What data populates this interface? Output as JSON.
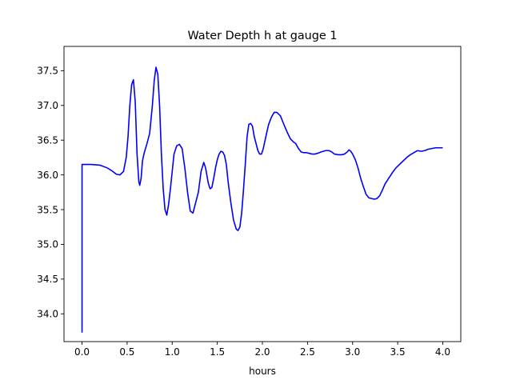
{
  "chart_data": {
    "type": "line",
    "title": "Water Depth h at gauge 1",
    "xlabel": "hours",
    "ylabel": "",
    "xlim": [
      -0.2,
      4.2
    ],
    "ylim": [
      33.6,
      37.85
    ],
    "xticks": [
      0.0,
      0.5,
      1.0,
      1.5,
      2.0,
      2.5,
      3.0,
      3.5,
      4.0
    ],
    "xtick_labels": [
      "0.0",
      "0.5",
      "1.0",
      "1.5",
      "2.0",
      "2.5",
      "3.0",
      "3.5",
      "4.0"
    ],
    "yticks": [
      34.0,
      34.5,
      35.0,
      35.5,
      36.0,
      36.5,
      37.0,
      37.5
    ],
    "ytick_labels": [
      "34.0",
      "34.5",
      "35.0",
      "35.5",
      "36.0",
      "36.5",
      "37.0",
      "37.5"
    ],
    "grid": false,
    "color": "#0000ff",
    "series": [
      {
        "x": [
          0.0,
          0.0,
          0.0,
          0.1,
          0.2,
          0.28,
          0.33,
          0.38,
          0.42,
          0.46,
          0.49,
          0.51,
          0.53,
          0.55,
          0.57,
          0.59,
          0.61,
          0.63,
          0.64,
          0.655,
          0.67,
          0.69,
          0.72,
          0.75,
          0.78,
          0.8,
          0.82,
          0.84,
          0.86,
          0.88,
          0.9,
          0.92,
          0.94,
          0.96,
          0.98,
          1.0,
          1.02,
          1.05,
          1.08,
          1.11,
          1.14,
          1.17,
          1.2,
          1.23,
          1.26,
          1.29,
          1.32,
          1.35,
          1.37,
          1.4,
          1.42,
          1.44,
          1.46,
          1.48,
          1.5,
          1.52,
          1.54,
          1.56,
          1.58,
          1.6,
          1.62,
          1.65,
          1.68,
          1.71,
          1.73,
          1.75,
          1.77,
          1.79,
          1.81,
          1.83,
          1.85,
          1.87,
          1.89,
          1.91,
          1.93,
          1.95,
          1.97,
          1.99,
          2.01,
          2.03,
          2.05,
          2.07,
          2.1,
          2.13,
          2.16,
          2.2,
          2.24,
          2.28,
          2.31,
          2.34,
          2.37,
          2.4,
          2.43,
          2.46,
          2.49,
          2.52,
          2.55,
          2.58,
          2.61,
          2.65,
          2.7,
          2.74,
          2.77,
          2.8,
          2.84,
          2.88,
          2.91,
          2.94,
          2.96,
          2.98,
          3.0,
          3.03,
          3.06,
          3.09,
          3.12,
          3.15,
          3.18,
          3.21,
          3.24,
          3.27,
          3.3,
          3.33,
          3.36,
          3.4,
          3.44,
          3.48,
          3.52,
          3.56,
          3.6,
          3.64,
          3.68,
          3.72,
          3.76,
          3.8,
          3.84,
          3.88,
          3.92,
          3.96,
          4.0
        ],
        "y": [
          33.73,
          36.0,
          36.15,
          36.15,
          36.14,
          36.1,
          36.06,
          36.01,
          36.0,
          36.05,
          36.25,
          36.55,
          37.0,
          37.3,
          37.37,
          37.05,
          36.3,
          35.9,
          35.85,
          35.95,
          36.2,
          36.32,
          36.45,
          36.6,
          37.0,
          37.35,
          37.55,
          37.45,
          37.0,
          36.3,
          35.8,
          35.5,
          35.42,
          35.58,
          35.8,
          36.05,
          36.3,
          36.42,
          36.44,
          36.38,
          36.1,
          35.75,
          35.48,
          35.45,
          35.6,
          35.75,
          36.05,
          36.18,
          36.1,
          35.88,
          35.8,
          35.82,
          35.95,
          36.1,
          36.22,
          36.3,
          36.34,
          36.33,
          36.28,
          36.15,
          35.9,
          35.6,
          35.35,
          35.22,
          35.2,
          35.25,
          35.45,
          35.78,
          36.15,
          36.55,
          36.73,
          36.74,
          36.7,
          36.55,
          36.45,
          36.35,
          36.3,
          36.3,
          36.38,
          36.5,
          36.62,
          36.73,
          36.83,
          36.9,
          36.9,
          36.85,
          36.72,
          36.6,
          36.52,
          36.48,
          36.45,
          36.38,
          36.33,
          36.32,
          36.32,
          36.31,
          36.3,
          36.3,
          36.31,
          36.33,
          36.35,
          36.35,
          36.33,
          36.3,
          36.29,
          36.29,
          36.3,
          36.33,
          36.36,
          36.34,
          36.3,
          36.22,
          36.1,
          35.95,
          35.83,
          35.72,
          35.67,
          35.66,
          35.65,
          35.66,
          35.7,
          35.78,
          35.87,
          35.95,
          36.03,
          36.1,
          36.15,
          36.2,
          36.25,
          36.29,
          36.32,
          36.35,
          36.34,
          36.35,
          36.37,
          36.38,
          36.39,
          36.39,
          36.39
        ]
      }
    ]
  }
}
